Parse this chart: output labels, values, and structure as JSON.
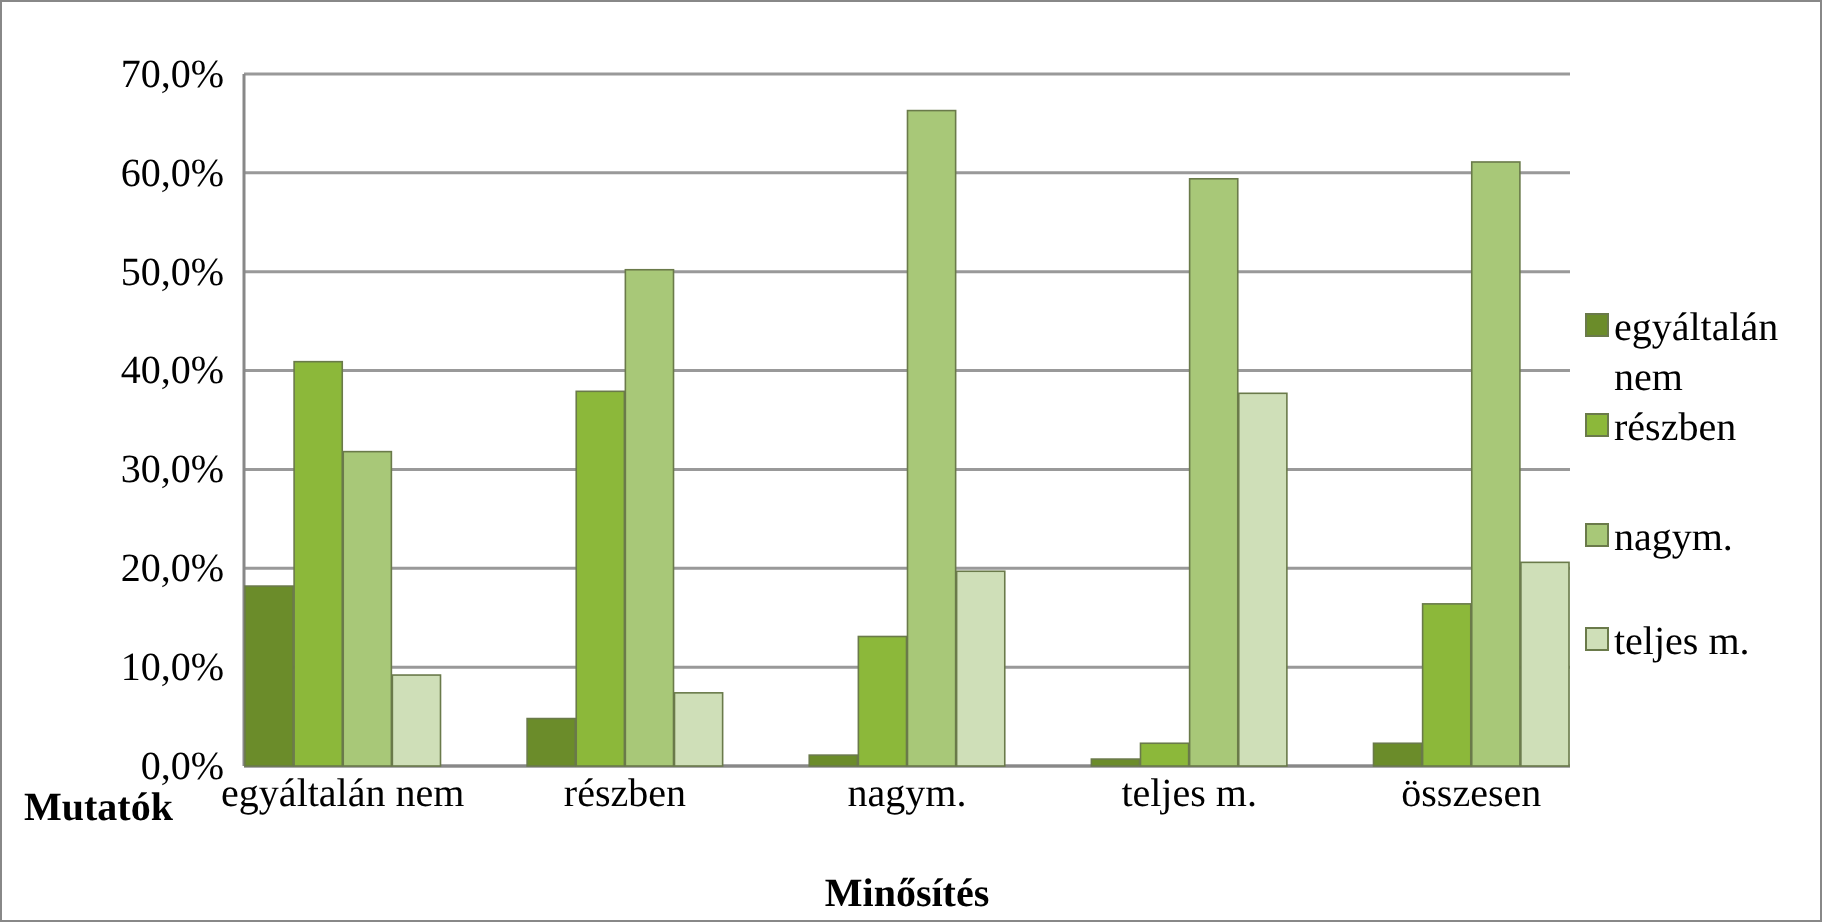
{
  "chart_data": {
    "type": "bar",
    "xlabel": "Minősítés",
    "annotations": [
      "Mutatók"
    ],
    "categories": [
      "egyáltalán nem",
      "részben",
      "nagym.",
      "teljes m.",
      "összesen"
    ],
    "series": [
      {
        "name": "egyáltalán nem",
        "color": "#6b8c2a",
        "values": [
          18.2,
          4.8,
          1.1,
          0.7,
          2.3
        ]
      },
      {
        "name": "részben",
        "color": "#8cb83a",
        "values": [
          40.9,
          37.9,
          13.1,
          2.3,
          16.4
        ]
      },
      {
        "name": "nagym.",
        "color": "#a8c878",
        "values": [
          31.8,
          50.2,
          66.3,
          59.4,
          61.1
        ]
      },
      {
        "name": "teljes m.",
        "color": "#cfdfb8",
        "values": [
          9.2,
          7.4,
          19.7,
          37.7,
          20.6
        ]
      }
    ],
    "ylim": [
      0,
      70
    ],
    "yticks": [
      {
        "value": 0,
        "label": "0,0%"
      },
      {
        "value": 10,
        "label": "10,0%"
      },
      {
        "value": 20,
        "label": "20,0%"
      },
      {
        "value": 30,
        "label": "30,0%"
      },
      {
        "value": 40,
        "label": "40,0%"
      },
      {
        "value": 50,
        "label": "50,0%"
      },
      {
        "value": 60,
        "label": "60,0%"
      },
      {
        "value": 70,
        "label": "70,0%"
      }
    ],
    "grid": "y",
    "legend": "right"
  }
}
